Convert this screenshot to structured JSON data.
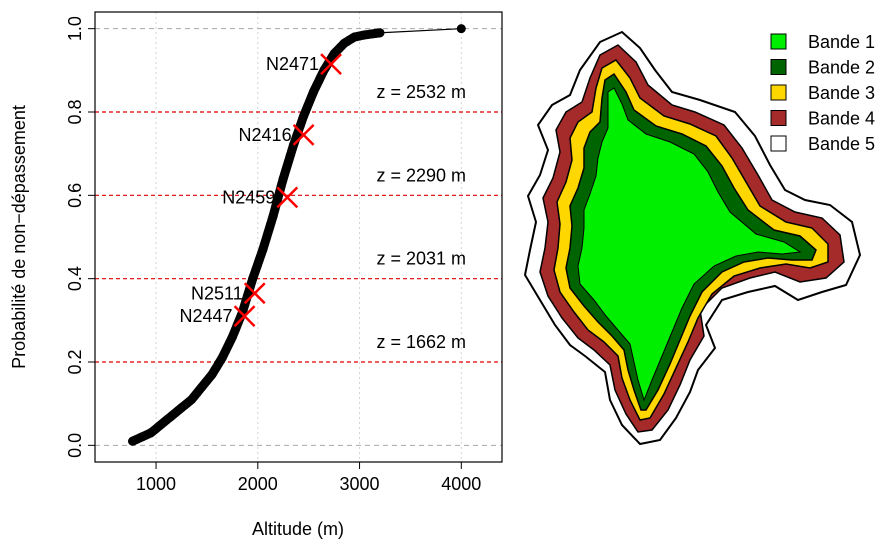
{
  "chart_data": {
    "type": "scatter",
    "xlabel": "Altitude (m)",
    "ylabel": "Probabilité de non−dépassement",
    "xlim": [
      400,
      4400
    ],
    "ylim": [
      -0.04,
      1.04
    ],
    "x_ticks": [
      "1000",
      "2000",
      "3000",
      "4000"
    ],
    "y_ticks": [
      "0.0",
      "0.2",
      "0.4",
      "0.6",
      "0.8",
      "1.0"
    ],
    "curve": {
      "x": [
        770,
        860,
        950,
        1050,
        1150,
        1250,
        1350,
        1450,
        1550,
        1650,
        1750,
        1850,
        1950,
        2050,
        2150,
        2250,
        2350,
        2450,
        2550,
        2650,
        2750,
        2850,
        2950,
        3050,
        3200
      ],
      "y": [
        0.01,
        0.02,
        0.03,
        0.05,
        0.07,
        0.09,
        0.11,
        0.14,
        0.17,
        0.21,
        0.26,
        0.32,
        0.4,
        0.47,
        0.55,
        0.64,
        0.72,
        0.79,
        0.85,
        0.9,
        0.94,
        0.965,
        0.98,
        0.985,
        0.99
      ]
    },
    "outlier": {
      "x": 4000,
      "y": 1.0
    },
    "band_lines": [
      {
        "y": 0.2,
        "label": "z = 1662 m"
      },
      {
        "y": 0.4,
        "label": "z = 2031 m"
      },
      {
        "y": 0.6,
        "label": "z = 2290 m"
      },
      {
        "y": 0.8,
        "label": "z = 2532 m"
      }
    ],
    "stations": [
      {
        "name": "N2471",
        "x": 2720,
        "y": 0.915
      },
      {
        "name": "N2416",
        "x": 2450,
        "y": 0.745
      },
      {
        "name": "N2459",
        "x": 2290,
        "y": 0.595
      },
      {
        "name": "N2511",
        "x": 1970,
        "y": 0.365
      },
      {
        "name": "N2447",
        "x": 1870,
        "y": 0.31
      }
    ],
    "legend": [
      {
        "label": "Bande 1",
        "color": "#00ee00"
      },
      {
        "label": "Bande 2",
        "color": "#006400"
      },
      {
        "label": "Bande 3",
        "color": "#ffd700"
      },
      {
        "label": "Bande 4",
        "color": "#a52a2a"
      },
      {
        "label": "Bande 5",
        "color": "#ffffff"
      }
    ],
    "legend_position": "top-right",
    "grid": true
  }
}
